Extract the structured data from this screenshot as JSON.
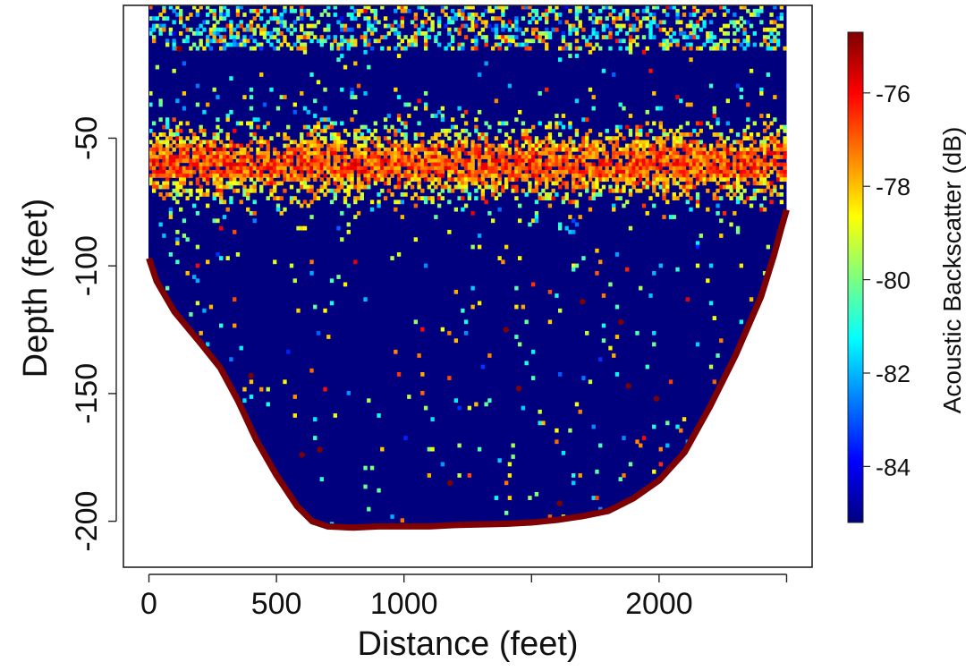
{
  "chart_data": {
    "type": "heatmap",
    "xlabel": "Distance (feet)",
    "ylabel": "Depth (feet)",
    "xlim": [
      -100,
      2600
    ],
    "ylim": [
      -218,
      2
    ],
    "x_ticks": [
      0,
      500,
      1000,
      1500,
      2000,
      2500
    ],
    "x_tick_labels": [
      "0",
      "500",
      "1000",
      "",
      "2000",
      ""
    ],
    "y_ticks": [
      -50,
      -100,
      -150,
      -200
    ],
    "y_tick_labels": [
      "-50",
      "-100",
      "-150",
      "-200"
    ],
    "colorbar": {
      "label": "Acoustic Backscatter (dB)",
      "range": [
        -85.2,
        -74.7
      ],
      "ticks": [
        -76,
        -78,
        -80,
        -82,
        -84
      ],
      "tick_labels": [
        "-76",
        "-78",
        "-80",
        "-82",
        "-84"
      ],
      "colormap": [
        "#00007f",
        "#0000ff",
        "#007fff",
        "#00ffff",
        "#7fff7f",
        "#ffff00",
        "#ff7f00",
        "#ff0000",
        "#7f0000"
      ]
    },
    "section": {
      "x_range": [
        0,
        2500
      ],
      "bottom_profile": [
        [
          0,
          -97
        ],
        [
          30,
          -106
        ],
        [
          100,
          -118
        ],
        [
          200,
          -130
        ],
        [
          280,
          -140
        ],
        [
          350,
          -153
        ],
        [
          420,
          -168
        ],
        [
          500,
          -182
        ],
        [
          580,
          -194
        ],
        [
          640,
          -200
        ],
        [
          700,
          -202
        ],
        [
          800,
          -202.5
        ],
        [
          900,
          -202
        ],
        [
          1000,
          -202
        ],
        [
          1100,
          -202
        ],
        [
          1200,
          -201.5
        ],
        [
          1400,
          -201
        ],
        [
          1500,
          -200.5
        ],
        [
          1600,
          -199.5
        ],
        [
          1700,
          -198
        ],
        [
          1800,
          -196
        ],
        [
          1900,
          -191
        ],
        [
          2000,
          -184
        ],
        [
          2100,
          -173
        ],
        [
          2200,
          -155
        ],
        [
          2300,
          -135
        ],
        [
          2400,
          -112
        ],
        [
          2450,
          -96
        ],
        [
          2480,
          -85
        ],
        [
          2500,
          -78
        ]
      ],
      "bottom_echo_db": -74.7,
      "background_db": -85.2,
      "scattering_layer": {
        "center_depth": -60,
        "half_width": 12,
        "peak_db": -75.5
      },
      "surface_layer": {
        "depth_range": [
          -15,
          0
        ],
        "mean_db": -82.5
      }
    },
    "isolated_targets": [
      [
        120,
        -15
      ],
      [
        400,
        -143
      ],
      [
        600,
        -174
      ],
      [
        670,
        -172
      ],
      [
        1180,
        -185
      ],
      [
        1400,
        -125
      ],
      [
        1450,
        -148
      ],
      [
        1700,
        -114
      ],
      [
        1850,
        -122
      ],
      [
        1880,
        -147
      ],
      [
        1610,
        -193
      ],
      [
        1990,
        -152
      ]
    ]
  }
}
